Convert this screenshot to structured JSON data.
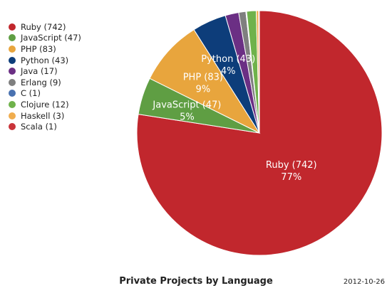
{
  "chart_data": {
    "type": "pie",
    "title": "Private Projects by Language",
    "date": "2012-10-26",
    "legend_position": "top-left",
    "slices": [
      {
        "name": "Ruby",
        "value": 742,
        "legend": "Ruby (742)",
        "label": "Ruby (742)",
        "percent_label": "77%",
        "color": "#c1272d"
      },
      {
        "name": "JavaScript",
        "value": 47,
        "legend": "JavaScript (47)",
        "label": "JavaScript (47)",
        "percent_label": "5%",
        "color": "#5f9e43"
      },
      {
        "name": "PHP",
        "value": 83,
        "legend": "PHP (83)",
        "label": "PHP (83)",
        "percent_label": "9%",
        "color": "#e8a53d"
      },
      {
        "name": "Python",
        "value": 43,
        "legend": "Python (43)",
        "label": "Python (43)",
        "percent_label": "4%",
        "color": "#0d3d7a"
      },
      {
        "name": "Java",
        "value": 17,
        "legend": "Java (17)",
        "color": "#6b2f84"
      },
      {
        "name": "Erlang",
        "value": 9,
        "legend": "Erlang (9)",
        "color": "#7f7f7f"
      },
      {
        "name": "C",
        "value": 1,
        "legend": "C (1)",
        "color": "#4a72b0"
      },
      {
        "name": "Clojure",
        "value": 12,
        "legend": "Clojure (12)",
        "color": "#6fb24b"
      },
      {
        "name": "Haskell",
        "value": 3,
        "legend": "Haskell (3)",
        "color": "#f0ad4e"
      },
      {
        "name": "Scala",
        "value": 1,
        "legend": "Scala (1)",
        "color": "#c9343a"
      }
    ]
  }
}
